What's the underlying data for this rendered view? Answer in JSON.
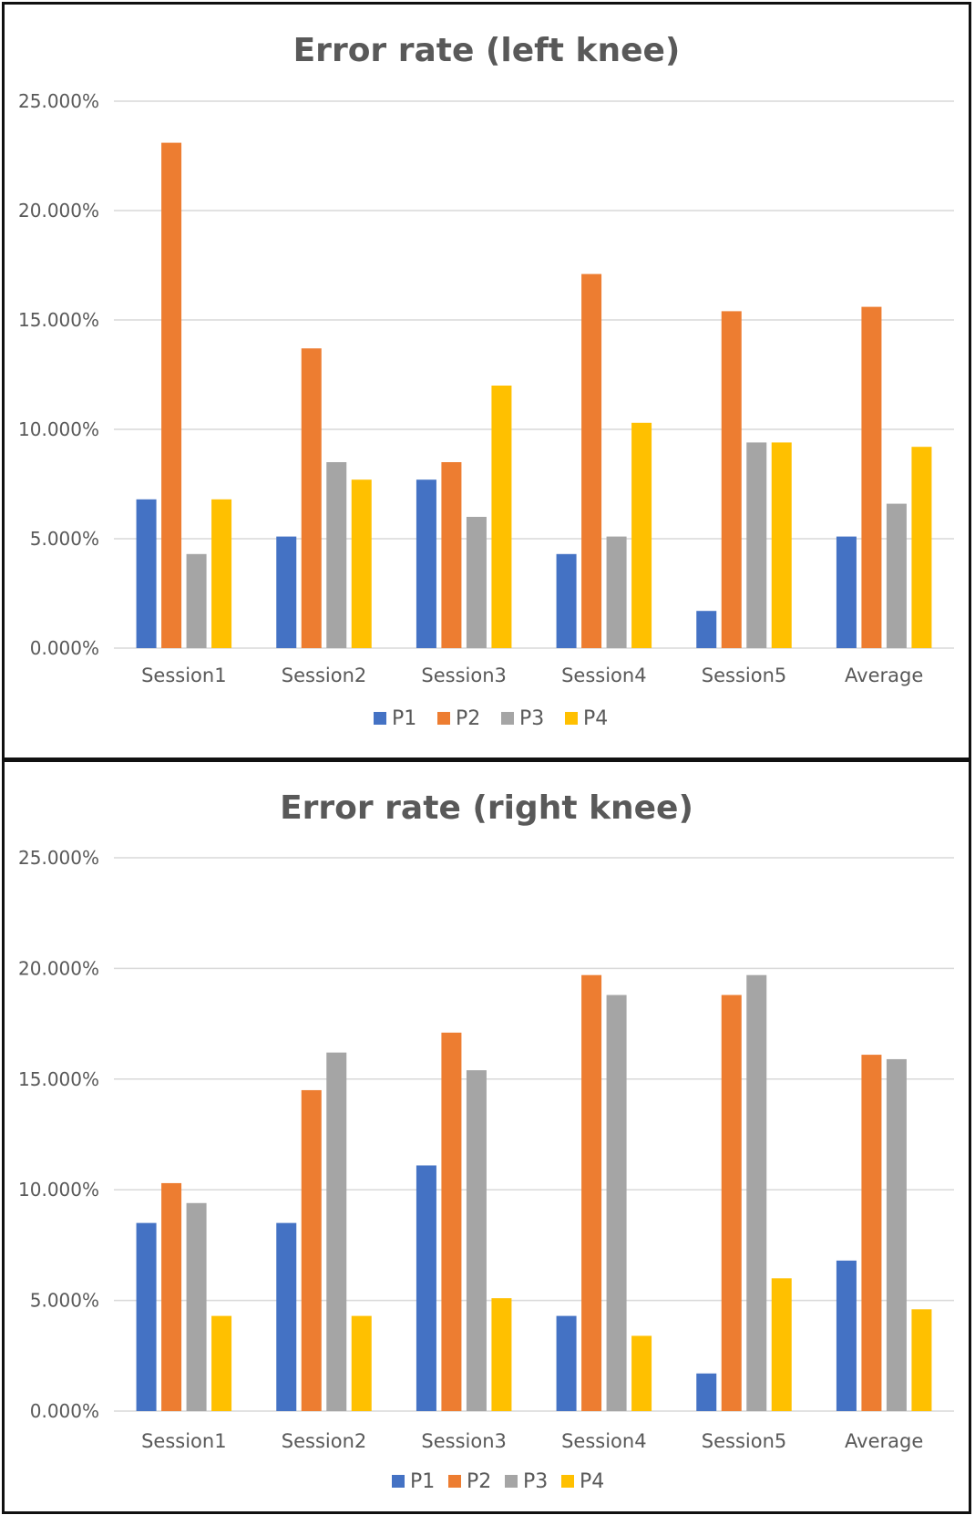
{
  "chart_data": [
    {
      "type": "bar",
      "title": "Error rate (left knee)",
      "xlabel": "",
      "ylabel": "",
      "ylim": [
        0,
        25
      ],
      "y_ticks": [
        "0.000%",
        "5.000%",
        "10.000%",
        "15.000%",
        "20.000%",
        "25.000%"
      ],
      "grid": true,
      "legend": "bottom",
      "categories": [
        "Session1",
        "Session2",
        "Session3",
        "Session4",
        "Session5",
        "Average"
      ],
      "series": [
        {
          "name": "P1",
          "color": "#4472c4",
          "values": [
            6.8,
            5.1,
            7.7,
            4.3,
            1.7,
            5.1
          ]
        },
        {
          "name": "P2",
          "color": "#ed7d31",
          "values": [
            23.1,
            13.7,
            8.5,
            17.1,
            15.4,
            15.6
          ]
        },
        {
          "name": "P3",
          "color": "#a5a5a5",
          "values": [
            4.3,
            8.5,
            6.0,
            5.1,
            9.4,
            6.6
          ]
        },
        {
          "name": "P4",
          "color": "#ffc000",
          "values": [
            6.8,
            7.7,
            12.0,
            10.3,
            9.4,
            9.2
          ]
        }
      ]
    },
    {
      "type": "bar",
      "title": "Error rate (right knee)",
      "xlabel": "",
      "ylabel": "",
      "ylim": [
        0,
        25
      ],
      "y_ticks": [
        "0.000%",
        "5.000%",
        "10.000%",
        "15.000%",
        "20.000%",
        "25.000%"
      ],
      "grid": true,
      "legend": "bottom",
      "categories": [
        "Session1",
        "Session2",
        "Session3",
        "Session4",
        "Session5",
        "Average"
      ],
      "series": [
        {
          "name": "P1",
          "color": "#4472c4",
          "values": [
            8.5,
            8.5,
            11.1,
            4.3,
            1.7,
            6.8
          ]
        },
        {
          "name": "P2",
          "color": "#ed7d31",
          "values": [
            10.3,
            14.5,
            17.1,
            19.7,
            18.8,
            16.1
          ]
        },
        {
          "name": "P3",
          "color": "#a5a5a5",
          "values": [
            9.4,
            16.2,
            15.4,
            18.8,
            19.7,
            15.9
          ]
        },
        {
          "name": "P4",
          "color": "#ffc000",
          "values": [
            4.3,
            4.3,
            5.1,
            3.4,
            6.0,
            4.6
          ]
        }
      ]
    }
  ]
}
